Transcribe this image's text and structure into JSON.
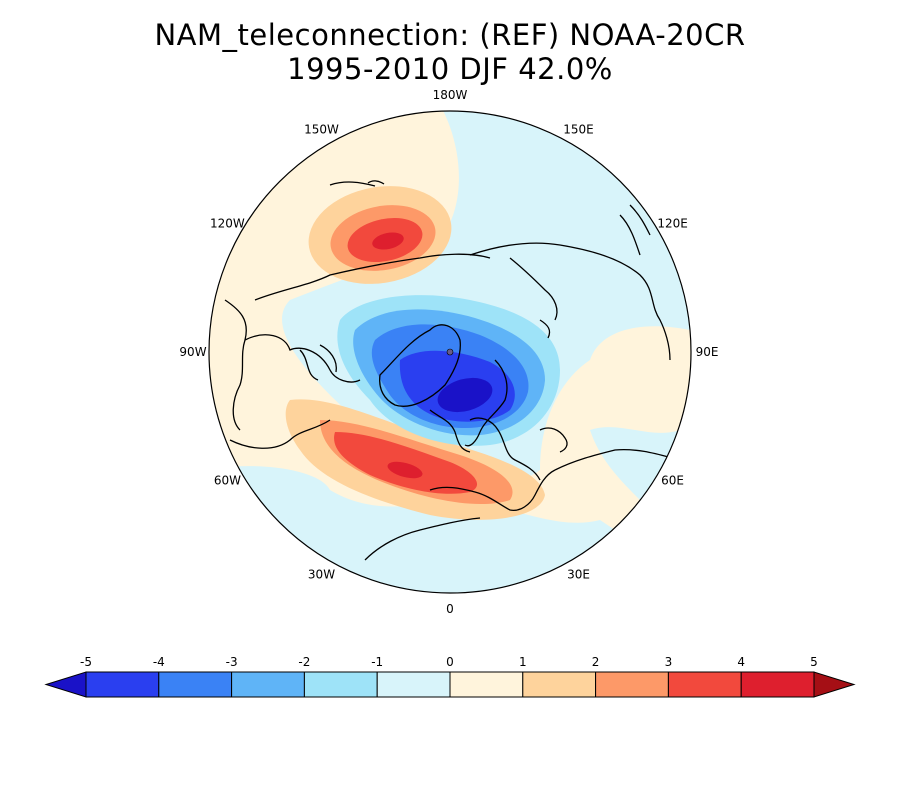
{
  "title": {
    "line1": "NAM_teleconnection: (REF) NOAA-20CR",
    "line2": "1995-2010 DJF 42.0%"
  },
  "map": {
    "projection": "north-polar-stereographic",
    "longitude_labels": [
      {
        "lon": 180,
        "text": "180W"
      },
      {
        "lon": 150,
        "text": "150E"
      },
      {
        "lon": 120,
        "text": "120E"
      },
      {
        "lon": 90,
        "text": "90E"
      },
      {
        "lon": 60,
        "text": "60E"
      },
      {
        "lon": 30,
        "text": "30E"
      },
      {
        "lon": 0,
        "text": "0"
      },
      {
        "lon": -30,
        "text": "30W"
      },
      {
        "lon": -60,
        "text": "60W"
      },
      {
        "lon": -90,
        "text": "90W"
      },
      {
        "lon": -120,
        "text": "120W"
      },
      {
        "lon": -150,
        "text": "150W"
      }
    ],
    "anomaly_centers": [
      {
        "name": "arctic-low",
        "sign": "negative",
        "peak": -5,
        "region": "Arctic / Barents Sea"
      },
      {
        "name": "pacific-high",
        "sign": "positive",
        "peak": 4,
        "region": "North Pacific"
      },
      {
        "name": "atlantic-high",
        "sign": "positive",
        "peak": 4,
        "region": "North Atlantic / Mediterranean"
      }
    ]
  },
  "colorbar": {
    "ticks": [
      "-5",
      "-4",
      "-3",
      "-2",
      "-1",
      "0",
      "1",
      "2",
      "3",
      "4",
      "5"
    ],
    "colors": {
      "under": "#1a12c8",
      "bins": [
        "#2a3ff0",
        "#3a82f5",
        "#5fb4f7",
        "#9ee3f8",
        "#d8f4fa",
        "#fff4dc",
        "#fed39c",
        "#fd9968",
        "#f2493d",
        "#de1f2e"
      ],
      "over": "#a50f15"
    }
  }
}
